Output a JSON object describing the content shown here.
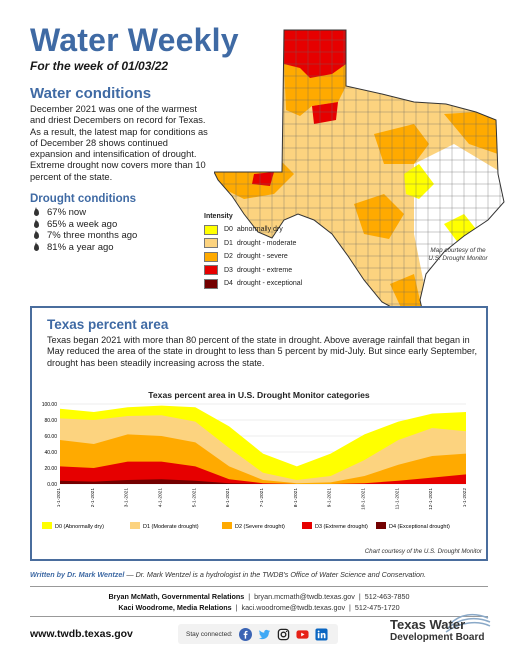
{
  "header": {
    "title": "Water Weekly",
    "week_of": "For the week of 01/03/22"
  },
  "water_conditions": {
    "heading": "Water conditions",
    "text": "December 2021 was one of the warmest and driest Decembers on record for Texas. As a result, the latest map for conditions as of December 28 shows continued expansion and intensification of drought. Extreme drought now covers more than 10 percent of the state."
  },
  "drought_conditions": {
    "heading": "Drought conditions",
    "items": [
      "67% now",
      "65% a week ago",
      "7% three months ago",
      "81% a year ago"
    ]
  },
  "map_legend": {
    "title": "Intensity",
    "items": [
      {
        "code": "D0",
        "label": "abnormally dry",
        "color": "#ffff00"
      },
      {
        "code": "D1",
        "label": "drought - moderate",
        "color": "#fcd37f"
      },
      {
        "code": "D2",
        "label": "drought - severe",
        "color": "#ffaa00"
      },
      {
        "code": "D3",
        "label": "drought - extreme",
        "color": "#e60000"
      },
      {
        "code": "D4",
        "label": "drought - exceptional",
        "color": "#730000"
      }
    ]
  },
  "map_credit": "Map courtesy of the U.S. Drought Monitor",
  "percent_area": {
    "heading": "Texas percent area",
    "text": "Texas began 2021 with more than 80 percent of the state in drought. Above average rainfall that began in May reduced the area of the state in drought to less than 5 percent by mid-July. But since early September, drought has been steadily increasing across the state."
  },
  "chart_data": {
    "type": "area",
    "title": "Texas percent area in U.S. Drought Monitor categories",
    "x": [
      "1-1-2021",
      "2-1-2021",
      "3-1-2021",
      "4-1-2021",
      "5-1-2021",
      "6-1-2021",
      "7-1-2021",
      "8-1-2021",
      "9-1-2021",
      "10-1-2021",
      "11-1-2021",
      "12-1-2021",
      "1-1-2022"
    ],
    "y_ticks": [
      "100.00",
      "80.00",
      "60.00",
      "40.00",
      "20.00",
      "0.00"
    ],
    "ylim": [
      0,
      100
    ],
    "series": [
      {
        "name": "D0 (Abnormally dry)",
        "color": "#ffff00",
        "values": [
          94,
          90,
          96,
          98,
          96,
          72,
          38,
          22,
          38,
          62,
          78,
          88,
          90
        ]
      },
      {
        "name": "D1 (Moderate drought)",
        "color": "#fcd37f",
        "values": [
          82,
          80,
          85,
          86,
          78,
          45,
          14,
          5,
          10,
          30,
          55,
          70,
          66
        ]
      },
      {
        "name": "D2 (Severe drought)",
        "color": "#ffaa00",
        "values": [
          55,
          50,
          62,
          60,
          52,
          22,
          5,
          1,
          2,
          10,
          24,
          35,
          38
        ]
      },
      {
        "name": "D3 (Extreme drought)",
        "color": "#e60000",
        "values": [
          22,
          20,
          28,
          28,
          22,
          6,
          1,
          0,
          0,
          1,
          4,
          8,
          12
        ]
      },
      {
        "name": "D4 (Exceptional drought)",
        "color": "#730000",
        "values": [
          4,
          3,
          5,
          6,
          4,
          1,
          0,
          0,
          0,
          0,
          0,
          0,
          0
        ]
      }
    ],
    "credit": "Chart courtesy of the U.S. Drought Monitor"
  },
  "written_by": {
    "author": "Written by Dr. Mark Wentzel",
    "note": " — Dr. Mark Wentzel is a hydrologist in the TWDB's Office of Water Science and Conservation."
  },
  "contacts": [
    {
      "name": "Bryan McMath, Governmental Relations",
      "email": "bryan.mcmath@twdb.texas.gov",
      "phone": "512-463-7850"
    },
    {
      "name": "Kaci Woodrome, Media Relations",
      "email": "kaci.woodrome@twdb.texas.gov",
      "phone": "512-475-1720"
    }
  ],
  "footer": {
    "url": "www.twdb.texas.gov",
    "stay_connected": "Stay connected:",
    "logo_line1": "Texas Water",
    "logo_line2": "Development Board"
  }
}
